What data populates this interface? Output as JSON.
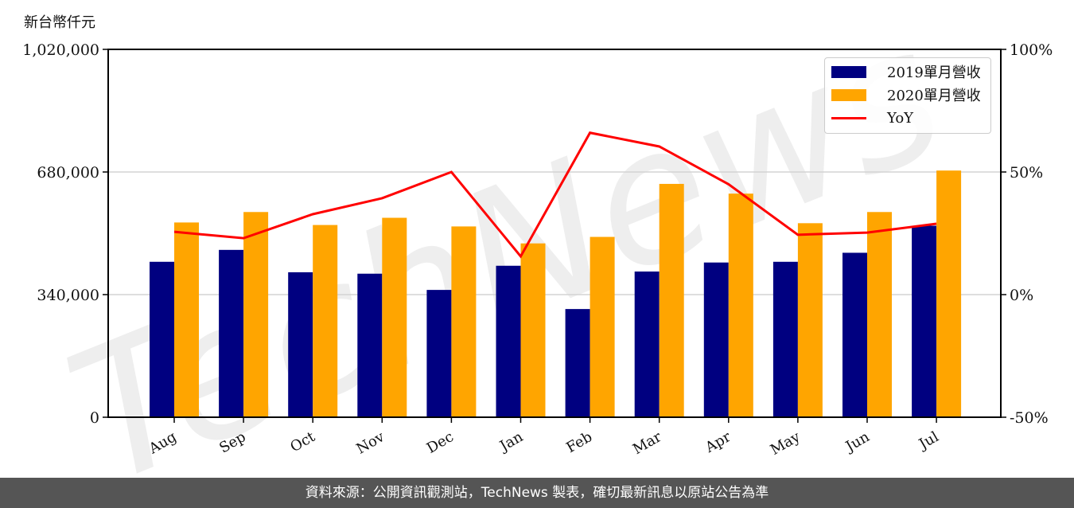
{
  "unit_label": "新台幣仟元",
  "footer": "資料來源：公開資訊觀測站，TechNews 製表，確切最新訊息以原站公告為準",
  "watermark": "TechNews",
  "colors": {
    "series_2019": "#000080",
    "series_2020": "#ffa500",
    "yoy": "#ff0000",
    "grid": "#d3d3d3",
    "footer_bg": "#555555"
  },
  "legend": [
    {
      "label": "2019單月營收",
      "type": "bar",
      "color": "#000080"
    },
    {
      "label": "2020單月營收",
      "type": "bar",
      "color": "#ffa500"
    },
    {
      "label": "YoY",
      "type": "line",
      "color": "#ff0000"
    }
  ],
  "chart_data": {
    "type": "bar",
    "title": "",
    "xlabel": "",
    "ylabel": "新台幣仟元",
    "y2label": "YoY",
    "categories": [
      "Aug",
      "Sep",
      "Oct",
      "Nov",
      "Dec",
      "Jan",
      "Feb",
      "Mar",
      "Apr",
      "May",
      "Jun",
      "Jul"
    ],
    "series": [
      {
        "name": "2019單月營收",
        "type": "bar",
        "axis": "left",
        "values": [
          431000,
          464000,
          402000,
          398000,
          353000,
          420000,
          300000,
          404000,
          429000,
          431000,
          456000,
          531000
        ]
      },
      {
        "name": "2020單月營收",
        "type": "bar",
        "axis": "left",
        "values": [
          540000,
          569000,
          533000,
          553000,
          529000,
          482000,
          500000,
          647000,
          620000,
          538000,
          569000,
          684000
        ]
      },
      {
        "name": "YoY",
        "type": "line",
        "axis": "right",
        "unit": "%",
        "values": [
          25.6,
          23.0,
          32.8,
          39.3,
          50.0,
          15.6,
          66.0,
          60.4,
          45.0,
          24.4,
          25.3,
          28.9
        ]
      }
    ],
    "ylim": [
      0,
      1020000
    ],
    "yticks": [
      0,
      340000,
      680000,
      1020000
    ],
    "ytick_labels": [
      "0",
      "340,000",
      "680,000",
      "1,020,000"
    ],
    "y2lim": [
      -50,
      100
    ],
    "y2ticks": [
      -50,
      0,
      50,
      100
    ],
    "y2tick_labels": [
      "-50%",
      "0%",
      "50%",
      "100%"
    ],
    "grid": "horizontal",
    "legend_position": "upper right"
  }
}
